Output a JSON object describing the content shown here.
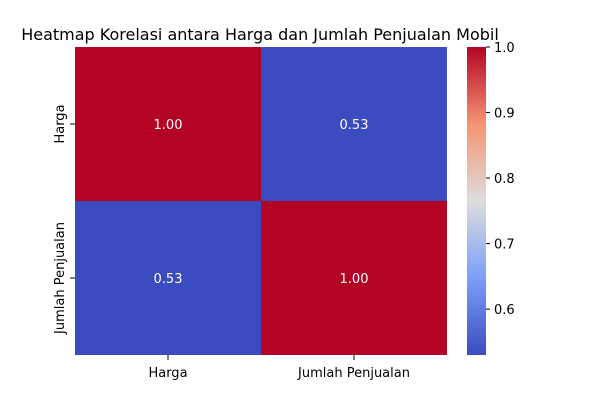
{
  "chart_data": {
    "type": "heatmap",
    "title": "Heatmap Korelasi antara Harga dan Jumlah Penjualan Mobil",
    "x_categories": [
      "Harga",
      "Jumlah Penjualan"
    ],
    "y_categories": [
      "Harga",
      "Jumlah Penjualan"
    ],
    "values": [
      [
        1.0,
        0.53
      ],
      [
        0.53,
        1.0
      ]
    ],
    "annotations": [
      [
        "1.00",
        "0.53"
      ],
      [
        "0.53",
        "1.00"
      ]
    ],
    "colormap": "coolwarm",
    "color_range": [
      0.53,
      1.0
    ],
    "colorbar_ticks": [
      "0.6",
      "0.7",
      "0.8",
      "0.9",
      "1.0"
    ],
    "colorbar_tick_values": [
      0.6,
      0.7,
      0.8,
      0.9,
      1.0
    ],
    "grid": false
  }
}
